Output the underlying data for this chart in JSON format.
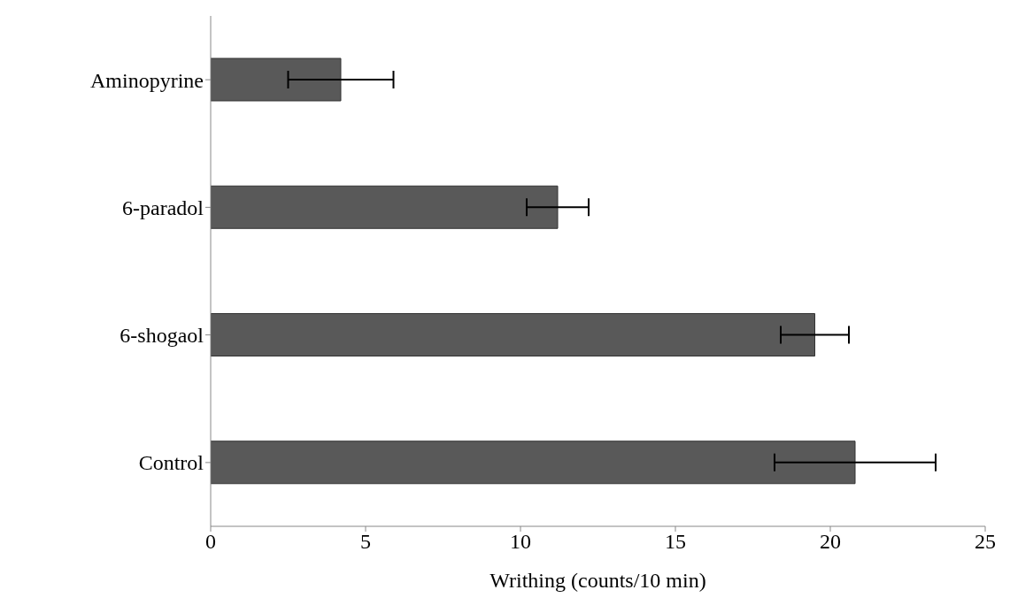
{
  "chart_data": {
    "type": "bar",
    "orientation": "horizontal",
    "xlabel": "Writhing (counts/10 min)",
    "categories": [
      "Aminopyrine",
      "6-paradol",
      "6-shogaol",
      "Control"
    ],
    "values": [
      4.2,
      11.2,
      19.5,
      20.8
    ],
    "errors": [
      1.7,
      1.0,
      1.1,
      2.6
    ],
    "color": "#595959",
    "xlim": [
      0,
      25
    ],
    "xticks": [
      0,
      5,
      10,
      15,
      20,
      25
    ],
    "grid": false,
    "legend": false
  }
}
